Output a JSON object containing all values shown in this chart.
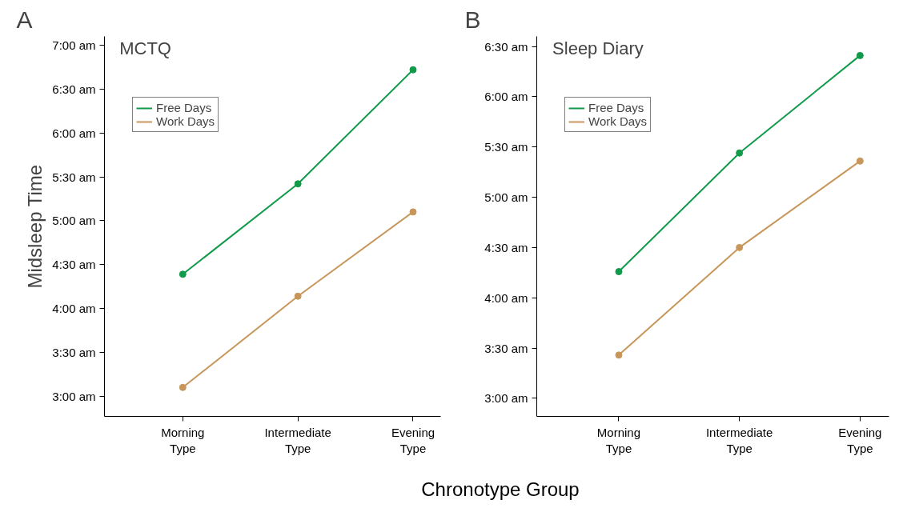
{
  "chart_data": [
    {
      "type": "line",
      "title": "MCTQ",
      "ylabel": "Midsleep Time",
      "xlabel": "Chronotype Group",
      "annotations": [
        "A"
      ],
      "categories": [
        "Morning Type",
        "Intermediate Type",
        "Evening Type"
      ],
      "series": [
        {
          "name": "Free Days",
          "color": "#119a4a",
          "values": [
            4.39,
            5.42,
            6.72
          ]
        },
        {
          "name": "Work Days",
          "color": "#c8965a",
          "values": [
            3.1,
            4.14,
            5.1
          ]
        }
      ],
      "ylim": [
        2.77,
        7.1
      ],
      "yticks": [
        {
          "value": 3,
          "label": "3:00 am"
        },
        {
          "value": 3.5,
          "label": "3:30 am"
        },
        {
          "value": 4,
          "label": "4:00 am"
        },
        {
          "value": 4.5,
          "label": "4:30 am"
        },
        {
          "value": 5,
          "label": "5:00 am"
        },
        {
          "value": 5.5,
          "label": "5:30 am"
        },
        {
          "value": 6,
          "label": "6:00 am"
        },
        {
          "value": 6.5,
          "label": "6:30 am"
        },
        {
          "value": 7,
          "label": "7:00 am"
        }
      ],
      "legend": "top left",
      "marker": "circle",
      "line_style": "solid",
      "grid": false
    },
    {
      "type": "line",
      "title": "Sleep Diary",
      "annotations": [
        "B"
      ],
      "categories": [
        "Morning Type",
        "Intermediate Type",
        "Evening Type"
      ],
      "series": [
        {
          "name": "Free Days",
          "color": "#119a4a",
          "values": [
            4.26,
            5.44,
            6.41
          ]
        },
        {
          "name": "Work Days",
          "color": "#c8965a",
          "values": [
            3.43,
            4.5,
            5.36
          ]
        }
      ],
      "ylim": [
        2.82,
        6.6
      ],
      "yticks": [
        {
          "value": 3,
          "label": "3:00 am"
        },
        {
          "value": 3.5,
          "label": "3:30 am"
        },
        {
          "value": 4,
          "label": "4:00 am"
        },
        {
          "value": 4.5,
          "label": "4:30 am"
        },
        {
          "value": 5,
          "label": "5:00 am"
        },
        {
          "value": 5.5,
          "label": "5:30 am"
        },
        {
          "value": 6,
          "label": "6:00 am"
        },
        {
          "value": 6.5,
          "label": "6:30 am"
        }
      ],
      "legend": "top left",
      "marker": "circle",
      "line_style": "solid",
      "grid": false
    }
  ]
}
